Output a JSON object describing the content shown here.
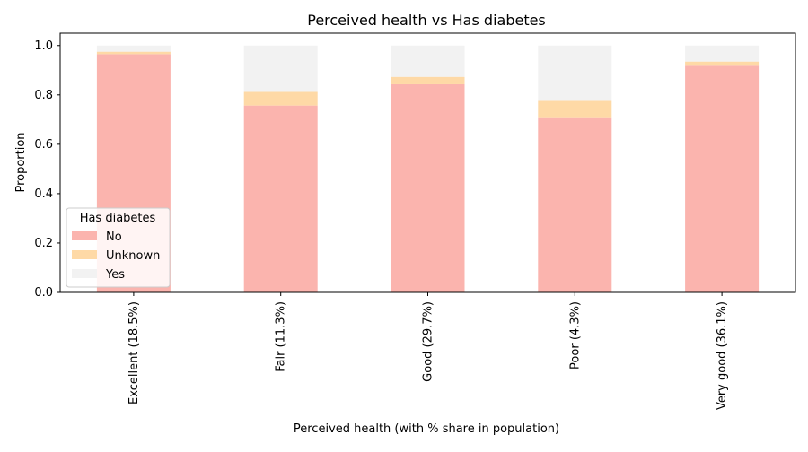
{
  "chart_data": {
    "type": "bar",
    "stacked": true,
    "title": "Perceived health  vs Has diabetes",
    "xlabel": "Perceived health  (with % share in population)",
    "ylabel": "Proportion",
    "ylim": [
      0,
      1.05
    ],
    "yticks": [
      "0.0",
      "0.2",
      "0.4",
      "0.6",
      "0.8",
      "1.0"
    ],
    "grid": false,
    "categories": [
      "Excellent (18.5%)",
      "Fair (11.3%)",
      "Good (29.7%)",
      "Poor (4.3%)",
      "Very good (36.1%)"
    ],
    "series": [
      {
        "name": "No",
        "color": "#fbb4ae",
        "values": [
          0.965,
          0.757,
          0.843,
          0.706,
          0.918
        ]
      },
      {
        "name": "Unknown",
        "color": "#fed9a6",
        "values": [
          0.01,
          0.055,
          0.03,
          0.07,
          0.017
        ]
      },
      {
        "name": "Yes",
        "color": "#f2f2f2",
        "values": [
          0.025,
          0.188,
          0.127,
          0.224,
          0.065
        ]
      }
    ],
    "legend": {
      "title": "Has diabetes",
      "position": "lower-left"
    }
  }
}
